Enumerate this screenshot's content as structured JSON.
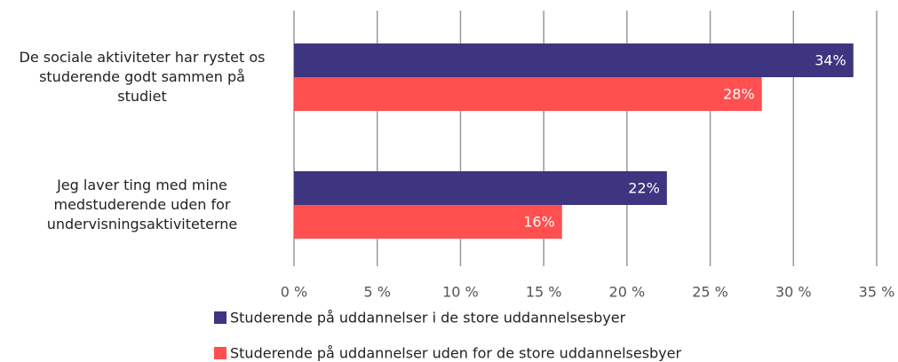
{
  "chart_data": {
    "type": "barh",
    "categories": [
      "De sociale aktiviteter har rystet os\nstuderende godt sammen på\nstudiet",
      "Jeg laver ting med mine\nmedstuderende uden for\nundervisningsaktiviteterne"
    ],
    "series": [
      {
        "name": "Studerende på uddannelser i de store uddannelsesbyer",
        "color": "#3d3580",
        "values": [
          33.6,
          22.4
        ],
        "value_labels": [
          "34%",
          "22%"
        ]
      },
      {
        "name": "Studerende på uddannelser uden for de store uddannelsesbyer",
        "color": "#ff4f4f",
        "values": [
          28.1,
          16.1
        ],
        "value_labels": [
          "28%",
          "16%"
        ]
      }
    ],
    "xlim": [
      0,
      35
    ],
    "xticks": [
      {
        "value": 0,
        "label": "0 %"
      },
      {
        "value": 5,
        "label": "5 %"
      },
      {
        "value": 10,
        "label": "10 %"
      },
      {
        "value": 15,
        "label": "15 %"
      },
      {
        "value": 20,
        "label": "20 %"
      },
      {
        "value": 25,
        "label": "25 %"
      },
      {
        "value": 30,
        "label": "30 %"
      },
      {
        "value": 35,
        "label": "35 %"
      }
    ],
    "grid": true
  }
}
